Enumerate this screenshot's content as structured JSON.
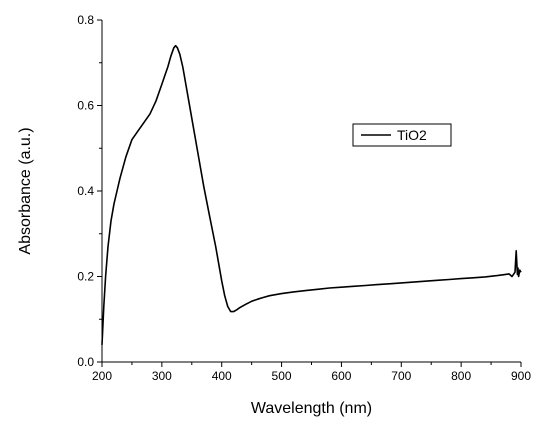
{
  "chart_data": {
    "type": "line",
    "xlabel": "Wavelength (nm)",
    "ylabel": "Absorbance (a.u.)",
    "xlim": [
      200,
      900
    ],
    "ylim": [
      0.0,
      0.8
    ],
    "x_ticks": [
      200,
      300,
      400,
      500,
      600,
      700,
      800,
      900
    ],
    "x_tick_labels": [
      "200",
      "300",
      "400",
      "500",
      "600",
      "700",
      "800",
      "900"
    ],
    "y_ticks": [
      0.0,
      0.2,
      0.4,
      0.6,
      0.8
    ],
    "y_tick_labels": [
      "0.0",
      "0.2",
      "0.4",
      "0.6",
      "0.8"
    ],
    "grid": false,
    "legend_position": "top-right",
    "series": [
      {
        "name": "TiO2",
        "color": "#000000",
        "x": [
          200,
          203,
          206,
          210,
          215,
          220,
          225,
          230,
          240,
          250,
          260,
          270,
          280,
          290,
          300,
          305,
          310,
          315,
          320,
          323,
          326,
          330,
          335,
          340,
          345,
          350,
          360,
          370,
          380,
          390,
          395,
          400,
          405,
          410,
          415,
          420,
          425,
          430,
          440,
          450,
          460,
          470,
          480,
          500,
          520,
          540,
          560,
          580,
          600,
          620,
          640,
          660,
          680,
          700,
          720,
          740,
          760,
          780,
          800,
          820,
          840,
          860,
          870,
          880,
          885,
          890,
          892,
          894,
          895,
          896,
          898,
          900
        ],
        "y": [
          0.04,
          0.13,
          0.2,
          0.27,
          0.33,
          0.37,
          0.4,
          0.43,
          0.48,
          0.52,
          0.54,
          0.56,
          0.58,
          0.61,
          0.65,
          0.67,
          0.69,
          0.715,
          0.735,
          0.74,
          0.735,
          0.72,
          0.69,
          0.65,
          0.61,
          0.57,
          0.49,
          0.41,
          0.34,
          0.27,
          0.23,
          0.19,
          0.155,
          0.13,
          0.118,
          0.118,
          0.122,
          0.127,
          0.135,
          0.142,
          0.147,
          0.151,
          0.155,
          0.16,
          0.164,
          0.167,
          0.17,
          0.173,
          0.175,
          0.177,
          0.179,
          0.181,
          0.183,
          0.185,
          0.187,
          0.189,
          0.191,
          0.193,
          0.195,
          0.197,
          0.199,
          0.202,
          0.204,
          0.206,
          0.2,
          0.21,
          0.26,
          0.205,
          0.22,
          0.2,
          0.215,
          0.21
        ]
      }
    ]
  }
}
